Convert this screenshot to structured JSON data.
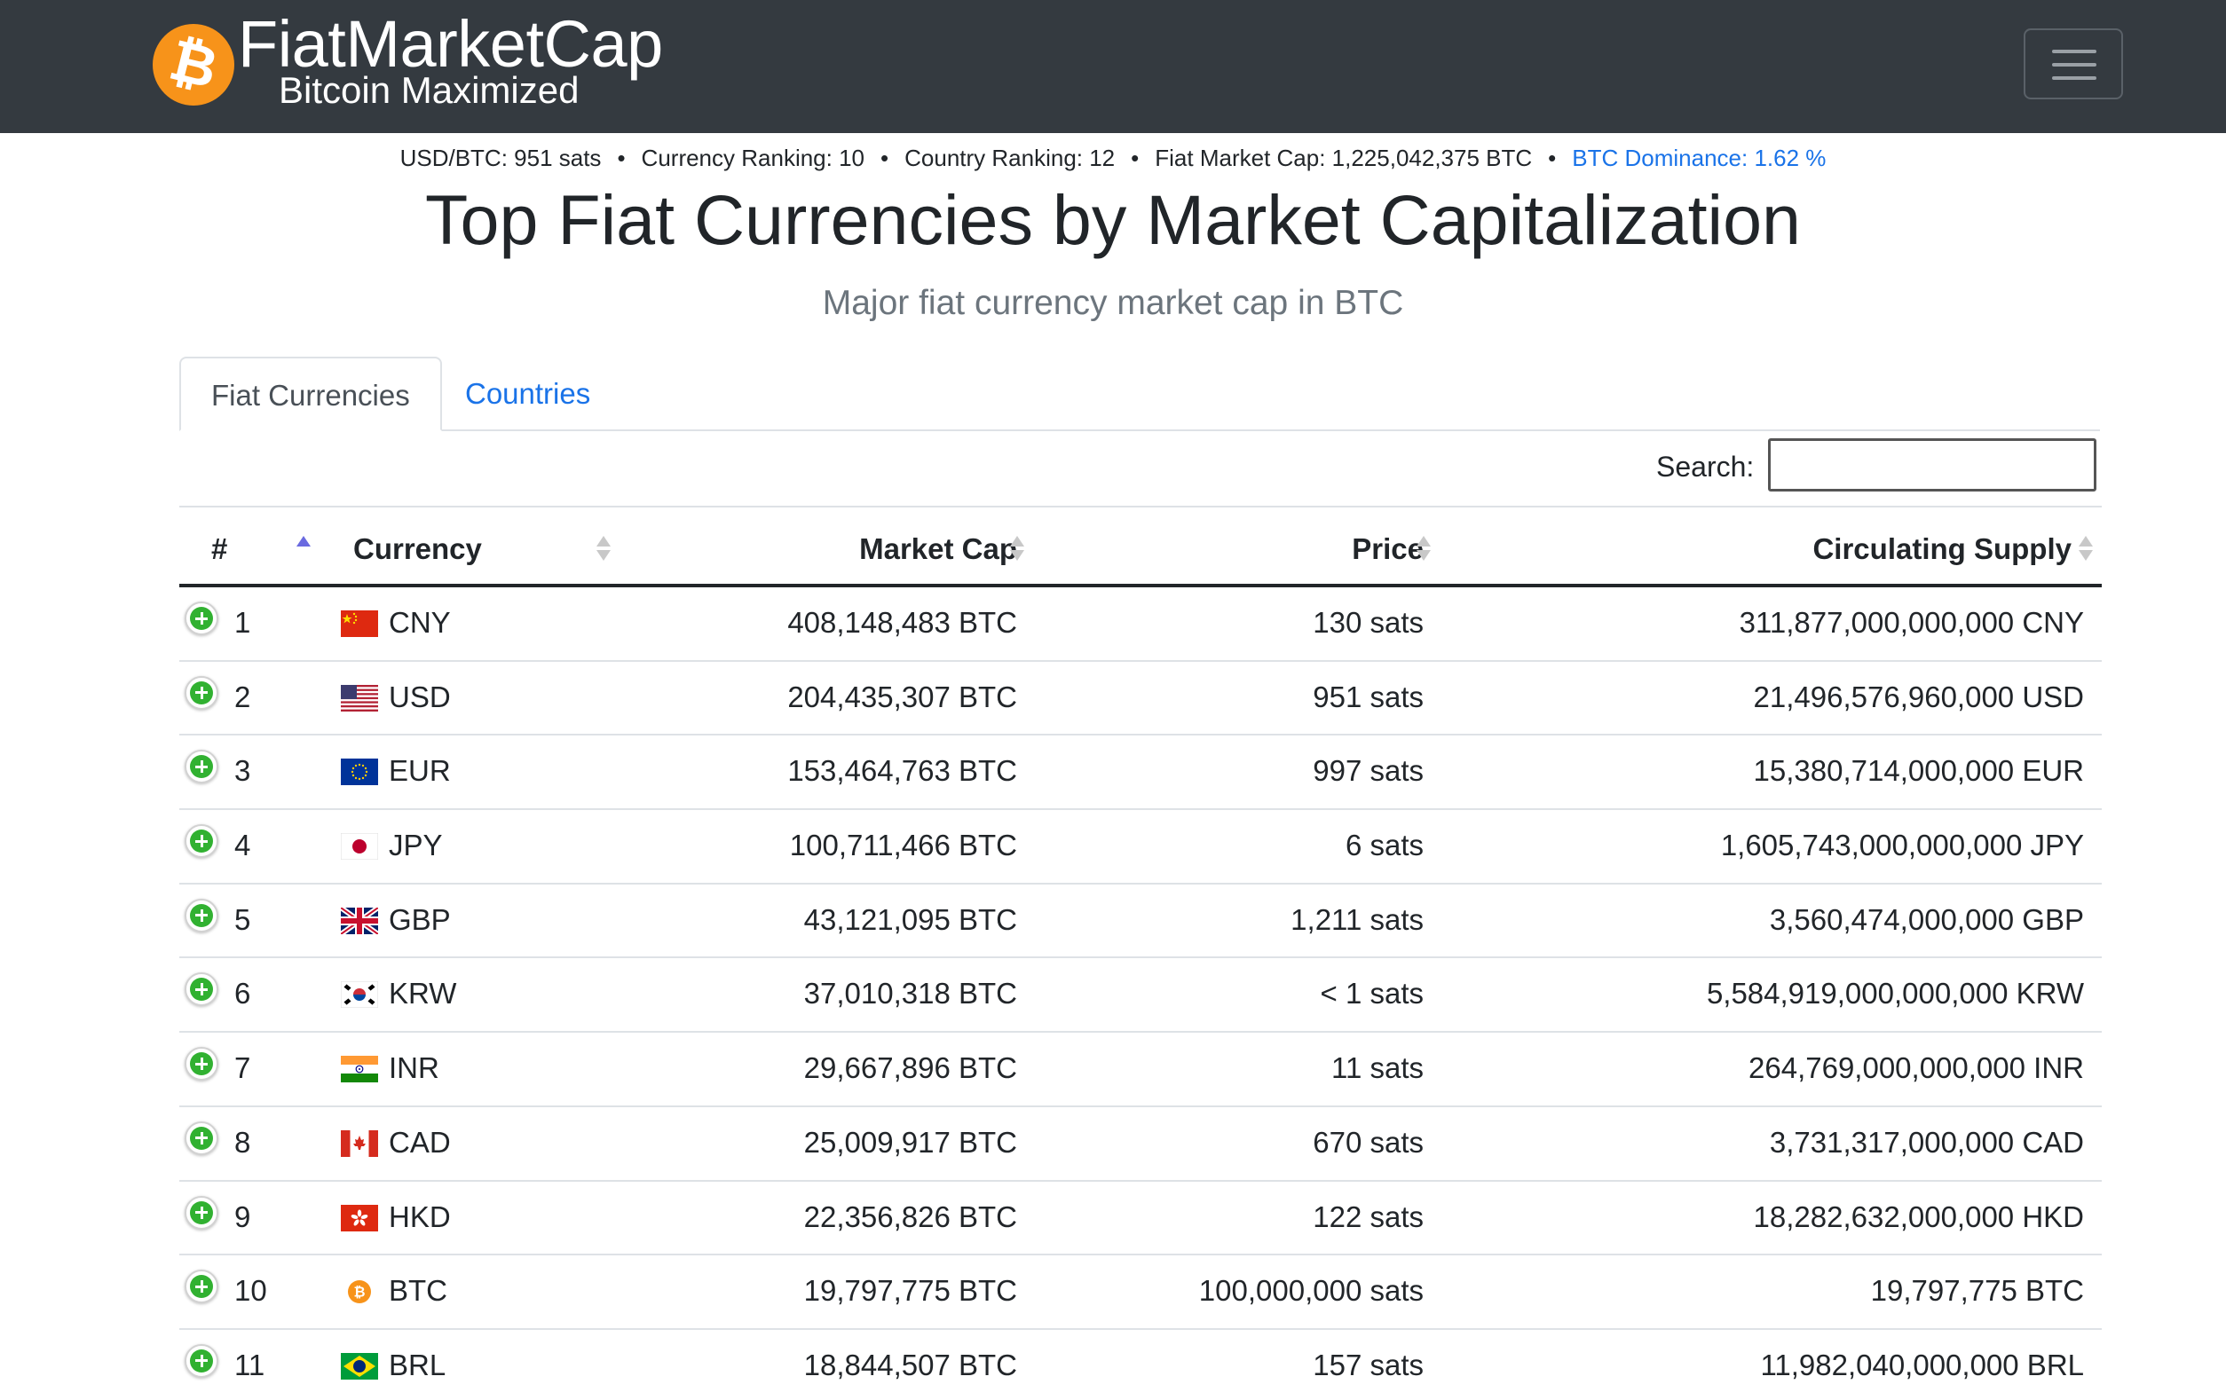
{
  "brand": {
    "name": "FiatMarketCap",
    "tagline": "Bitcoin Maximized",
    "logo_icon": "bitcoin-logo-icon",
    "logo_glyph": "₿",
    "logo_color": "#f7931a"
  },
  "stats": {
    "usd_btc": "USD/BTC: 951 sats",
    "currency_ranking": "Currency Ranking: 10",
    "country_ranking": "Country Ranking: 12",
    "fiat_market_cap": "Fiat Market Cap: 1,225,042,375 BTC",
    "btc_dominance": "BTC Dominance: 1.62 %",
    "separator": "•"
  },
  "page": {
    "title": "Top Fiat Currencies by Market Capitalization",
    "subtitle": "Major fiat currency market cap in BTC"
  },
  "tabs": [
    {
      "label": "Fiat Currencies",
      "active": true
    },
    {
      "label": "Countries",
      "active": false
    }
  ],
  "search": {
    "label": "Search:",
    "value": ""
  },
  "table": {
    "columns": {
      "rank": "#",
      "currency": "Currency",
      "market_cap": "Market Cap",
      "price": "Price",
      "supply": "Circulating Supply"
    },
    "sorted_column": "rank",
    "sort_direction": "ascending",
    "rows": [
      {
        "rank": "1",
        "flag": "cn-flag-icon",
        "code": "CNY",
        "market_cap": "408,148,483 BTC",
        "price": "130 sats",
        "supply": "311,877,000,000,000 CNY"
      },
      {
        "rank": "2",
        "flag": "us-flag-icon",
        "code": "USD",
        "market_cap": "204,435,307 BTC",
        "price": "951 sats",
        "supply": "21,496,576,960,000 USD"
      },
      {
        "rank": "3",
        "flag": "eu-flag-icon",
        "code": "EUR",
        "market_cap": "153,464,763 BTC",
        "price": "997 sats",
        "supply": "15,380,714,000,000 EUR"
      },
      {
        "rank": "4",
        "flag": "jp-flag-icon",
        "code": "JPY",
        "market_cap": "100,711,466 BTC",
        "price": "6 sats",
        "supply": "1,605,743,000,000,000 JPY"
      },
      {
        "rank": "5",
        "flag": "gb-flag-icon",
        "code": "GBP",
        "market_cap": "43,121,095 BTC",
        "price": "1,211 sats",
        "supply": "3,560,474,000,000 GBP"
      },
      {
        "rank": "6",
        "flag": "kr-flag-icon",
        "code": "KRW",
        "market_cap": "37,010,318 BTC",
        "price": "< 1 sats",
        "supply": "5,584,919,000,000,000 KRW"
      },
      {
        "rank": "7",
        "flag": "in-flag-icon",
        "code": "INR",
        "market_cap": "29,667,896 BTC",
        "price": "11 sats",
        "supply": "264,769,000,000,000 INR"
      },
      {
        "rank": "8",
        "flag": "ca-flag-icon",
        "code": "CAD",
        "market_cap": "25,009,917 BTC",
        "price": "670 sats",
        "supply": "3,731,317,000,000 CAD"
      },
      {
        "rank": "9",
        "flag": "hk-flag-icon",
        "code": "HKD",
        "market_cap": "22,356,826 BTC",
        "price": "122 sats",
        "supply": "18,282,632,000,000 HKD"
      },
      {
        "rank": "10",
        "flag": "btc-coin-icon",
        "code": "BTC",
        "market_cap": "19,797,775 BTC",
        "price": "100,000,000 sats",
        "supply": "19,797,775 BTC"
      },
      {
        "rank": "11",
        "flag": "br-flag-icon",
        "code": "BRL",
        "market_cap": "18,844,507 BTC",
        "price": "157 sats",
        "supply": "11,982,040,000,000 BRL"
      }
    ]
  },
  "colors": {
    "navbar": "#343a40",
    "link": "#1a73e8",
    "expand_button": "#31b131",
    "muted_text": "#6c757d"
  }
}
